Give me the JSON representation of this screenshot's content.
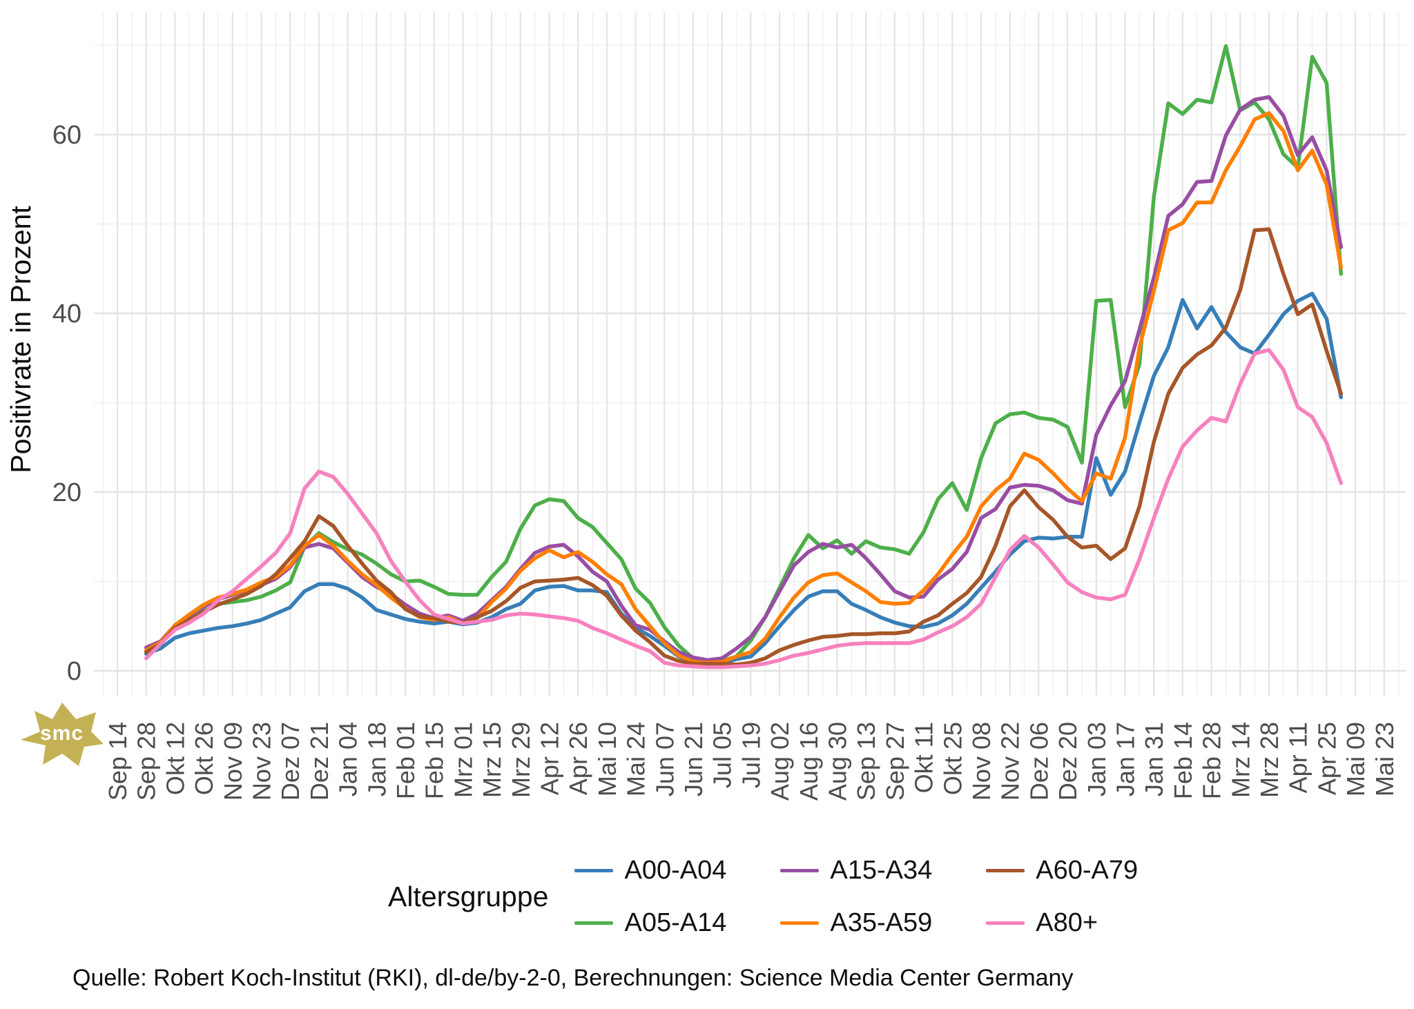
{
  "source": {
    "text": "Quelle: Robert Koch-Institut (RKI), dl-de/by-2-0, Berechnungen: Science Media Center Germany"
  },
  "logo": {
    "text": "smc",
    "color": "#c5b155"
  },
  "legend": {
    "title": "Altersgruppe",
    "entries": [
      {
        "label": "A00-A04",
        "color": "#377EB8"
      },
      {
        "label": "A05-A14",
        "color": "#4DAF4A"
      },
      {
        "label": "A15-A34",
        "color": "#984EA3"
      },
      {
        "label": "A35-A59",
        "color": "#FF7F00"
      },
      {
        "label": "A60-A79",
        "color": "#A65628"
      },
      {
        "label": "A80+",
        "color": "#F781BF"
      }
    ]
  },
  "chart_data": {
    "type": "line",
    "title": "",
    "xlabel": "",
    "ylabel": "Positivrate in Prozent",
    "ylim": [
      0,
      70
    ],
    "y_major_ticks": [
      0,
      20,
      40,
      60
    ],
    "y_minor_ticks": [
      10,
      30,
      50,
      70
    ],
    "grid": "on",
    "legend_position": "bottom",
    "x_unit": "week",
    "x_tick_step_weeks": 2,
    "x_tick_labels": [
      "Sep 14",
      "Sep 28",
      "Okt 12",
      "Okt 26",
      "Nov 09",
      "Nov 23",
      "Dez 07",
      "Dez 21",
      "Jan 04",
      "Jan 18",
      "Feb 01",
      "Feb 15",
      "Mrz 01",
      "Mrz 15",
      "Mrz 29",
      "Apr 12",
      "Apr 26",
      "Mai 10",
      "Mai 24",
      "Jun 07",
      "Jun 21",
      "Jul 05",
      "Jul 19",
      "Aug 02",
      "Aug 16",
      "Aug 30",
      "Sep 13",
      "Sep 27",
      "Okt 11",
      "Okt 25",
      "Nov 08",
      "Nov 22",
      "Dez 06",
      "Dez 20",
      "Jan 03",
      "Jan 17",
      "Jan 31",
      "Feb 14",
      "Feb 28",
      "Mrz 14",
      "Mrz 28",
      "Apr 11",
      "Apr 25",
      "Mai 09",
      "Mai 23"
    ],
    "data_start_week": 2,
    "series": [
      {
        "name": "A00-A04",
        "color": "#377EB8",
        "values": [
          1.9,
          2.5,
          3.7,
          4.2,
          4.5,
          4.8,
          5.0,
          5.3,
          5.7,
          6.4,
          7.1,
          8.9,
          9.7,
          9.7,
          9.2,
          8.2,
          6.8,
          6.3,
          5.8,
          5.5,
          5.3,
          5.5,
          5.2,
          5.4,
          6.0,
          6.9,
          7.5,
          9.0,
          9.4,
          9.5,
          9.0,
          9.0,
          8.8,
          6.4,
          4.8,
          3.9,
          2.8,
          1.6,
          0.9,
          0.8,
          0.9,
          1.3,
          1.6,
          3.1,
          5.0,
          6.8,
          8.3,
          8.9,
          8.9,
          7.5,
          6.8,
          6.0,
          5.4,
          5.0,
          4.9,
          5.3,
          6.2,
          7.5,
          9.3,
          11.1,
          13.0,
          14.5,
          14.9,
          14.8,
          15.0,
          15.0,
          23.8,
          19.7,
          22.3,
          27.8,
          33.0,
          36.2,
          41.5,
          38.3,
          40.7,
          37.9,
          36.2,
          35.5,
          37.6,
          39.9,
          41.4,
          42.2,
          39.4,
          30.6
        ]
      },
      {
        "name": "A05-A14",
        "color": "#4DAF4A",
        "values": [
          2.2,
          3.1,
          4.9,
          5.8,
          6.7,
          7.5,
          7.7,
          7.9,
          8.3,
          9.0,
          9.9,
          13.9,
          15.4,
          14.4,
          13.6,
          13.0,
          12.0,
          10.8,
          10.0,
          10.1,
          9.4,
          8.6,
          8.5,
          8.5,
          10.5,
          12.2,
          15.9,
          18.5,
          19.2,
          19.0,
          17.1,
          16.1,
          14.3,
          12.5,
          9.2,
          7.6,
          4.9,
          2.8,
          1.4,
          1.1,
          1.1,
          1.6,
          3.4,
          6.0,
          9.3,
          12.6,
          15.2,
          13.7,
          14.6,
          13.1,
          14.5,
          13.8,
          13.6,
          13.1,
          15.5,
          19.2,
          21.0,
          18.0,
          23.8,
          27.7,
          28.7,
          28.9,
          28.3,
          28.1,
          27.3,
          23.3,
          41.4,
          41.5,
          29.5,
          34.3,
          53.0,
          63.5,
          62.3,
          63.9,
          63.6,
          69.9,
          62.7,
          63.6,
          61.7,
          57.8,
          56.3,
          68.7,
          65.8,
          44.4
        ]
      },
      {
        "name": "A15-A34",
        "color": "#984EA3",
        "values": [
          2.6,
          3.3,
          5.1,
          6.2,
          7.2,
          8.0,
          8.5,
          9.0,
          9.6,
          10.3,
          11.6,
          13.8,
          14.2,
          13.7,
          12.1,
          10.5,
          9.4,
          8.6,
          7.4,
          6.4,
          5.9,
          6.2,
          5.6,
          6.4,
          7.9,
          9.4,
          11.4,
          13.2,
          13.9,
          14.1,
          12.8,
          11.1,
          10.0,
          7.3,
          5.1,
          4.6,
          3.3,
          2.1,
          1.5,
          1.2,
          1.4,
          2.5,
          3.8,
          6.0,
          8.9,
          11.8,
          13.3,
          14.2,
          13.8,
          14.1,
          12.6,
          10.8,
          8.9,
          8.2,
          8.3,
          10.2,
          11.4,
          13.3,
          17.1,
          18.1,
          20.5,
          20.8,
          20.7,
          20.2,
          19.1,
          18.7,
          26.4,
          29.7,
          32.4,
          38.2,
          44.0,
          50.9,
          52.2,
          54.7,
          54.8,
          59.9,
          62.8,
          63.9,
          64.2,
          62.1,
          57.7,
          59.7,
          56.0,
          47.4
        ]
      },
      {
        "name": "A35-A59",
        "color": "#FF7F00",
        "values": [
          2.3,
          3.2,
          5.1,
          6.3,
          7.4,
          8.2,
          8.6,
          9.1,
          9.9,
          10.5,
          11.8,
          14.0,
          15.2,
          14.0,
          12.3,
          10.8,
          9.6,
          8.2,
          7.0,
          6.0,
          5.7,
          6.0,
          5.3,
          5.9,
          7.7,
          9.2,
          11.2,
          12.6,
          13.5,
          12.7,
          13.3,
          12.2,
          10.8,
          9.7,
          6.9,
          5.0,
          3.1,
          1.7,
          1.0,
          0.9,
          1.0,
          1.6,
          2.1,
          3.6,
          6.0,
          8.2,
          9.9,
          10.7,
          10.9,
          9.9,
          8.9,
          7.7,
          7.5,
          7.6,
          9.0,
          10.8,
          13.0,
          15.0,
          18.4,
          20.2,
          21.5,
          24.3,
          23.6,
          22.1,
          20.4,
          19.0,
          22.1,
          21.5,
          26.1,
          36.2,
          42.5,
          49.3,
          50.1,
          52.4,
          52.4,
          56.0,
          58.7,
          61.7,
          62.4,
          60.4,
          56.0,
          58.2,
          54.4,
          45.1
        ]
      },
      {
        "name": "A60-A79",
        "color": "#A65628",
        "values": [
          2.1,
          3.0,
          4.8,
          5.7,
          6.6,
          7.4,
          8.0,
          8.6,
          9.5,
          10.8,
          12.6,
          14.5,
          17.3,
          16.2,
          14.0,
          12.0,
          10.1,
          8.8,
          6.9,
          6.1,
          5.9,
          5.5,
          5.4,
          6.0,
          6.7,
          7.8,
          9.3,
          10.0,
          10.1,
          10.2,
          10.4,
          9.6,
          8.4,
          6.2,
          4.5,
          3.2,
          1.7,
          1.1,
          0.8,
          0.8,
          0.8,
          0.7,
          0.9,
          1.4,
          2.3,
          2.9,
          3.4,
          3.8,
          3.9,
          4.1,
          4.1,
          4.2,
          4.2,
          4.4,
          5.5,
          6.2,
          7.5,
          8.7,
          10.5,
          14.0,
          18.4,
          20.2,
          18.3,
          16.9,
          15.0,
          13.8,
          14.0,
          12.5,
          13.7,
          18.4,
          25.6,
          31.0,
          33.9,
          35.4,
          36.4,
          38.4,
          42.6,
          49.3,
          49.4,
          44.4,
          39.9,
          41.0,
          35.8,
          31.0
        ]
      },
      {
        "name": "A80+",
        "color": "#F781BF",
        "values": [
          1.4,
          3.0,
          4.6,
          5.4,
          6.4,
          7.9,
          8.9,
          10.3,
          11.7,
          13.2,
          15.4,
          20.4,
          22.3,
          21.7,
          19.8,
          17.6,
          15.4,
          12.3,
          10.0,
          7.9,
          6.3,
          5.8,
          5.3,
          5.5,
          5.7,
          6.2,
          6.4,
          6.3,
          6.1,
          5.9,
          5.6,
          4.8,
          4.2,
          3.5,
          2.8,
          2.2,
          0.9,
          0.6,
          0.5,
          0.4,
          0.4,
          0.5,
          0.6,
          0.8,
          1.2,
          1.7,
          2.0,
          2.4,
          2.8,
          3.0,
          3.1,
          3.1,
          3.1,
          3.1,
          3.5,
          4.3,
          5.0,
          6.0,
          7.5,
          10.5,
          13.5,
          15.1,
          13.8,
          11.9,
          9.9,
          8.8,
          8.2,
          8.0,
          8.5,
          12.5,
          17.1,
          21.5,
          25.1,
          26.9,
          28.3,
          27.9,
          32.1,
          35.5,
          35.9,
          33.7,
          29.5,
          28.4,
          25.5,
          21.0
        ]
      }
    ]
  }
}
